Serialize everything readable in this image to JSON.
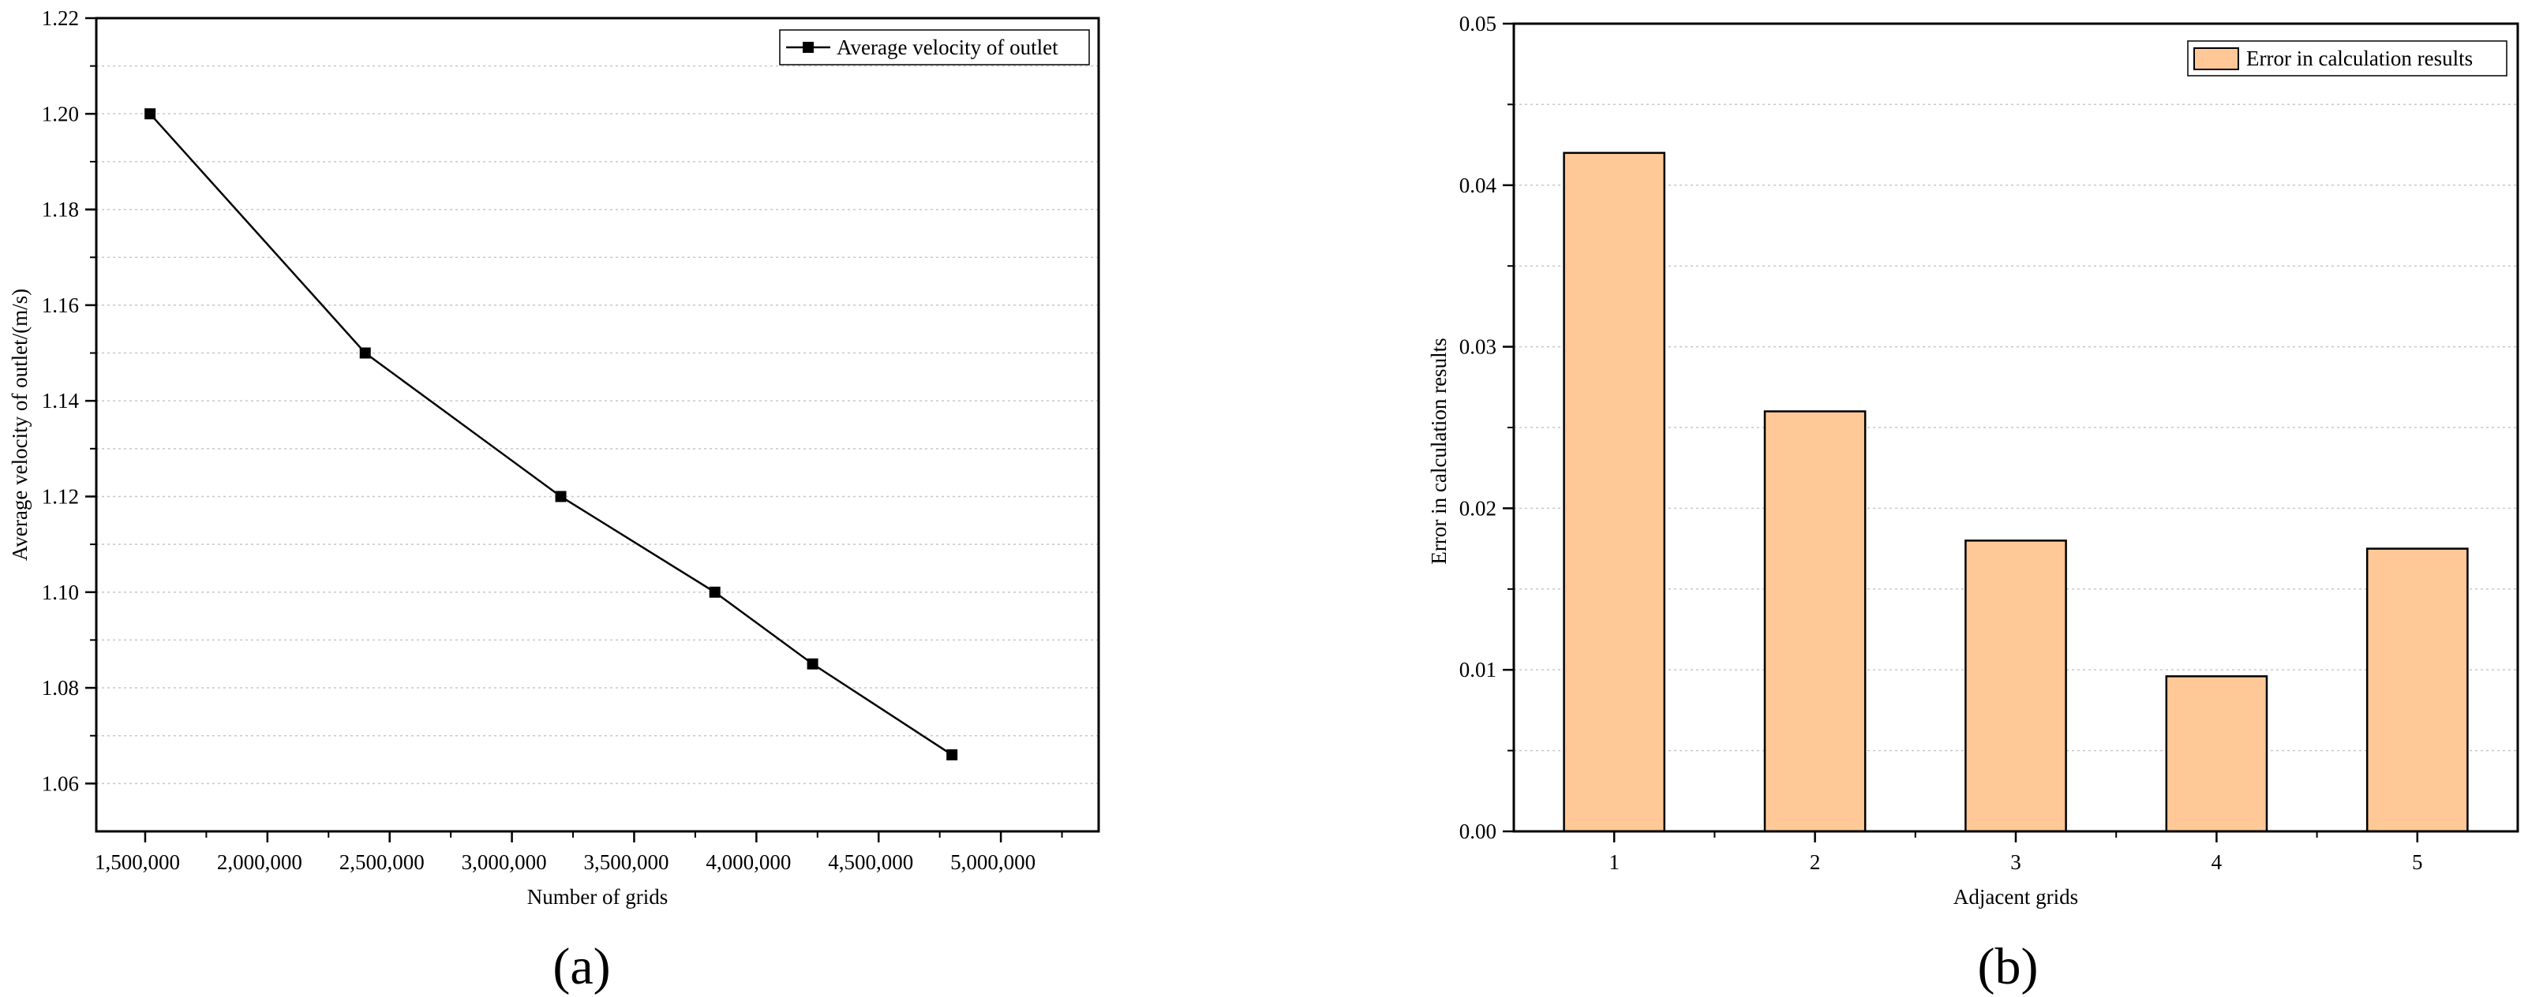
{
  "chart_data": [
    {
      "type": "line",
      "panel_label": "(a)",
      "title": "",
      "xlabel": "Number of grids",
      "ylabel": "Average velocity of outlet/(m/s)",
      "xlim": [
        1300000,
        5400000
      ],
      "ylim": [
        1.05,
        1.22
      ],
      "x_ticks": [
        1500000,
        2000000,
        2500000,
        3000000,
        3500000,
        4000000,
        4500000,
        5000000
      ],
      "x_tick_labels": [
        "1,500,000",
        "2,000,000",
        "2,500,000",
        "3,000,000",
        "3,500,000",
        "4,000,000",
        "4,500,000",
        "5,000,000"
      ],
      "y_ticks": [
        1.06,
        1.08,
        1.1,
        1.12,
        1.14,
        1.16,
        1.18,
        1.2,
        1.22
      ],
      "y_tick_labels": [
        "1.06",
        "1.08",
        "1.10",
        "1.12",
        "1.14",
        "1.16",
        "1.18",
        "1.20",
        "1.22"
      ],
      "grid": true,
      "legend_position": "top-right",
      "series": [
        {
          "name": "Average velocity of outlet",
          "color": "#000000",
          "x": [
            1520000,
            2400000,
            3200000,
            3830000,
            4230000,
            4800000
          ],
          "y": [
            1.2,
            1.15,
            1.12,
            1.1,
            1.085,
            1.066
          ]
        }
      ]
    },
    {
      "type": "bar",
      "panel_label": "(b)",
      "title": "",
      "xlabel": "Adjacent grids",
      "ylabel": "Error in calculation results",
      "categories": [
        "1",
        "2",
        "3",
        "4",
        "5"
      ],
      "ylim": [
        0,
        0.05
      ],
      "y_ticks": [
        0,
        0.01,
        0.02,
        0.03,
        0.04,
        0.05
      ],
      "y_tick_labels": [
        "0.00",
        "0.01",
        "0.02",
        "0.03",
        "0.04",
        "0.05"
      ],
      "grid": true,
      "legend_position": "top-right",
      "series": [
        {
          "name": "Error in calculation results",
          "color": "#ffc896",
          "values": [
            0.042,
            0.026,
            0.018,
            0.0096,
            0.0175
          ]
        }
      ]
    }
  ]
}
